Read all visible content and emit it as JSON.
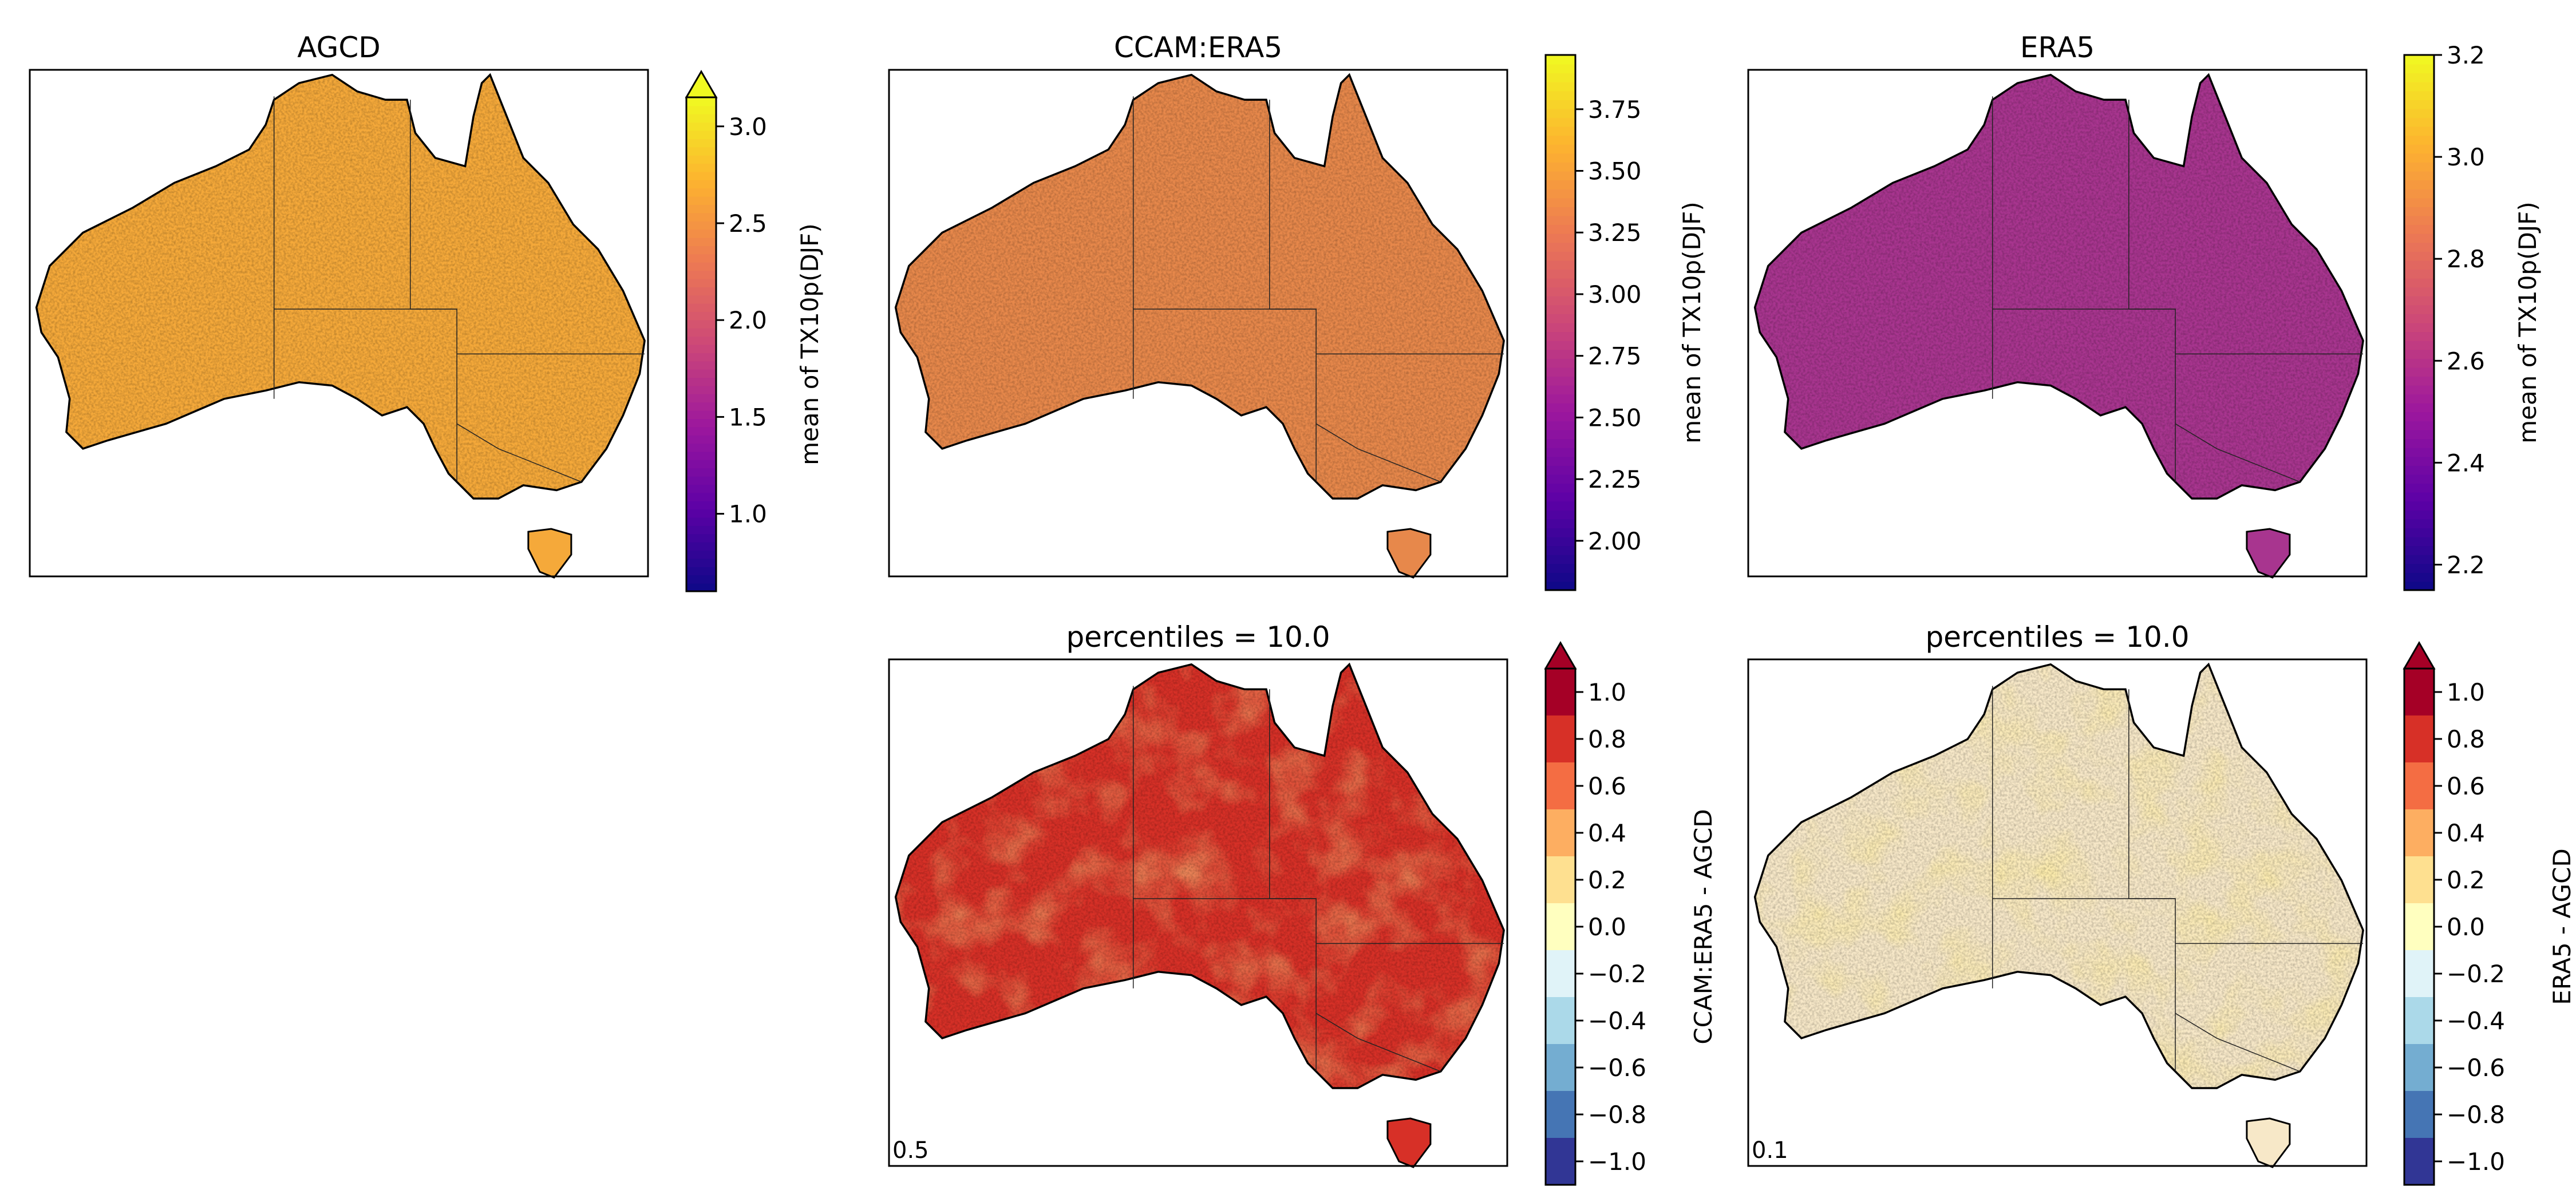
{
  "chart_data": {
    "type": "heatmap",
    "panels": [
      {
        "id": "agcd",
        "title": "AGCD",
        "colormap": "plasma",
        "colorbar_label": "mean of TX10p(DJF)",
        "vmin": 0.6,
        "vmax": 3.15,
        "extend": "max",
        "ticks": [
          "1.0",
          "1.5",
          "2.0",
          "2.5",
          "3.0"
        ],
        "tick_values": [
          1.0,
          1.5,
          2.0,
          2.5,
          3.0
        ],
        "base_color": "#f5a93a",
        "corner_text": ""
      },
      {
        "id": "ccam",
        "title": "CCAM:ERA5",
        "colormap": "plasma",
        "colorbar_label": "mean of TX10p(DJF)",
        "vmin": 1.8,
        "vmax": 3.97,
        "extend": "neither",
        "ticks": [
          "2.00",
          "2.25",
          "2.50",
          "2.75",
          "3.00",
          "3.25",
          "3.50",
          "3.75"
        ],
        "tick_values": [
          2.0,
          2.25,
          2.5,
          2.75,
          3.0,
          3.25,
          3.5,
          3.75
        ],
        "base_color": "#e7884b",
        "corner_text": ""
      },
      {
        "id": "era5",
        "title": "ERA5",
        "colormap": "plasma",
        "colorbar_label": "mean of TX10p(DJF)",
        "vmin": 2.15,
        "vmax": 3.2,
        "extend": "neither",
        "ticks": [
          "2.2",
          "2.4",
          "2.6",
          "2.8",
          "3.0",
          "3.2"
        ],
        "tick_values": [
          2.2,
          2.4,
          2.6,
          2.8,
          3.0,
          3.2
        ],
        "base_color": "#a8358f",
        "corner_text": ""
      },
      {
        "id": "ccam-diff",
        "title": "percentiles = 10.0",
        "colormap": "RdYlBu_r",
        "colorbar_label": "CCAM:ERA5 - AGCD",
        "vmin": -1.1,
        "vmax": 1.1,
        "extend": "max",
        "ticks": [
          "1.0",
          "0.8",
          "0.6",
          "0.4",
          "0.2",
          "0.0",
          "−0.2",
          "−0.4",
          "−0.6",
          "−0.8",
          "−1.0"
        ],
        "tick_values": [
          1.0,
          0.8,
          0.6,
          0.4,
          0.2,
          0.0,
          -0.2,
          -0.4,
          -0.6,
          -0.8,
          -1.0
        ],
        "base_color": "#d73027",
        "corner_text": "0.5"
      },
      {
        "id": "era5-diff",
        "title": "percentiles = 10.0",
        "colormap": "RdYlBu_r",
        "colorbar_label": "ERA5 - AGCD",
        "vmin": -1.1,
        "vmax": 1.1,
        "extend": "max",
        "ticks": [
          "1.0",
          "0.8",
          "0.6",
          "0.4",
          "0.2",
          "0.0",
          "−0.2",
          "−0.4",
          "−0.6",
          "−0.8",
          "−1.0"
        ],
        "tick_values": [
          1.0,
          0.8,
          0.6,
          0.4,
          0.2,
          0.0,
          -0.2,
          -0.4,
          -0.6,
          -0.8,
          -1.0
        ],
        "base_color": "#f7e8c8",
        "corner_text": "0.1"
      }
    ],
    "discrete_colors": [
      "#a50026",
      "#d73027",
      "#f46d43",
      "#fdae61",
      "#fee090",
      "#ffffbf",
      "#e0f3f8",
      "#abd9e9",
      "#74add1",
      "#4575b4",
      "#313695"
    ],
    "plasma_stops": [
      "#0d0887",
      "#5c01a6",
      "#9c179e",
      "#cc4778",
      "#ed7953",
      "#fdb42f",
      "#f0f921"
    ]
  }
}
